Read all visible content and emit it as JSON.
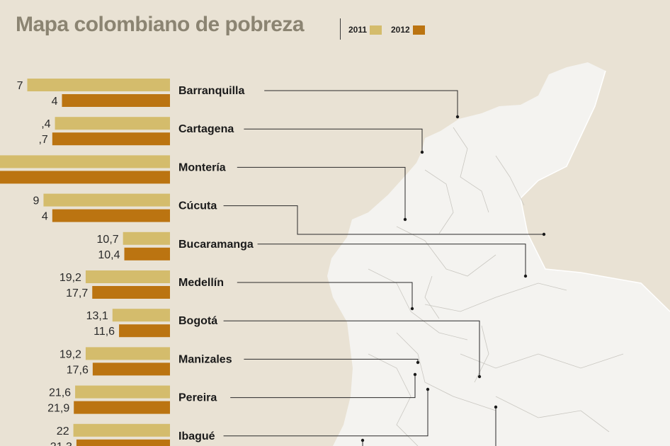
{
  "title": "Mapa colombiano de pobreza",
  "legend": [
    {
      "label": "2011",
      "color": "#d4bc6c"
    },
    {
      "label": "2012",
      "color": "#bb7411"
    }
  ],
  "chart_data": {
    "type": "bar",
    "orientation": "horizontal",
    "title": "Mapa colombiano de pobreza",
    "categories": [
      "Barranquilla",
      "Cartagena",
      "Montería",
      "Cúcuta",
      "Bucaramanga",
      "Medellín",
      "Bogotá",
      "Manizales",
      "Pereira",
      "Ibagué"
    ],
    "series": [
      {
        "name": "2011",
        "color": "#d4bc6c",
        "values": [
          null,
          null,
          null,
          null,
          10.7,
          19.2,
          13.1,
          19.2,
          21.6,
          22
        ],
        "labels": [
          "7",
          ",4",
          "",
          "9",
          "10,7",
          "19,2",
          "13,1",
          "19,2",
          "21,6",
          "22"
        ]
      },
      {
        "name": "2012",
        "color": "#bb7411",
        "values": [
          null,
          null,
          null,
          null,
          10.4,
          17.7,
          11.6,
          17.6,
          21.9,
          21.3
        ],
        "labels": [
          "4",
          ",7",
          "",
          "4",
          "10,4",
          "17,7",
          "11,6",
          "17,6",
          "21,9",
          "21,3"
        ]
      }
    ],
    "cropped_bar_lengths": {
      "2011": [
        32.5,
        26.2,
        40.0,
        28.8
      ],
      "2012": [
        24.6,
        26.8,
        40.0,
        26.8
      ]
    },
    "xlim": [
      0,
      40
    ],
    "axis": "none",
    "grid": false,
    "legend_position": "top"
  }
}
